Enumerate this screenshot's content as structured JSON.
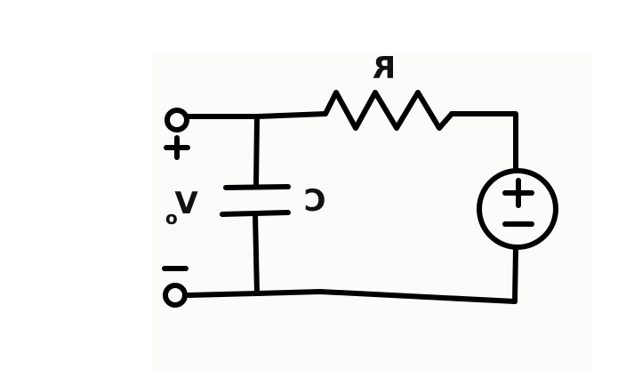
{
  "diagram": {
    "type": "circuit-schematic",
    "orientation": "mirrored",
    "colors": {
      "ink": "#000000",
      "background": "#ffffff",
      "paper_tint": "#fbfbfa"
    },
    "components": {
      "resistor": {
        "label": "R"
      },
      "capacitor": {
        "label": "C"
      },
      "voltage_source": {
        "label": ""
      }
    },
    "output": {
      "label_main": "V",
      "label_subscript": "o",
      "positive_sign": "+",
      "negative_sign": "−"
    },
    "icons": {
      "terminal_top": "terminal-icon",
      "terminal_bottom": "terminal-icon",
      "source_symbol": "voltage-source-icon"
    }
  }
}
